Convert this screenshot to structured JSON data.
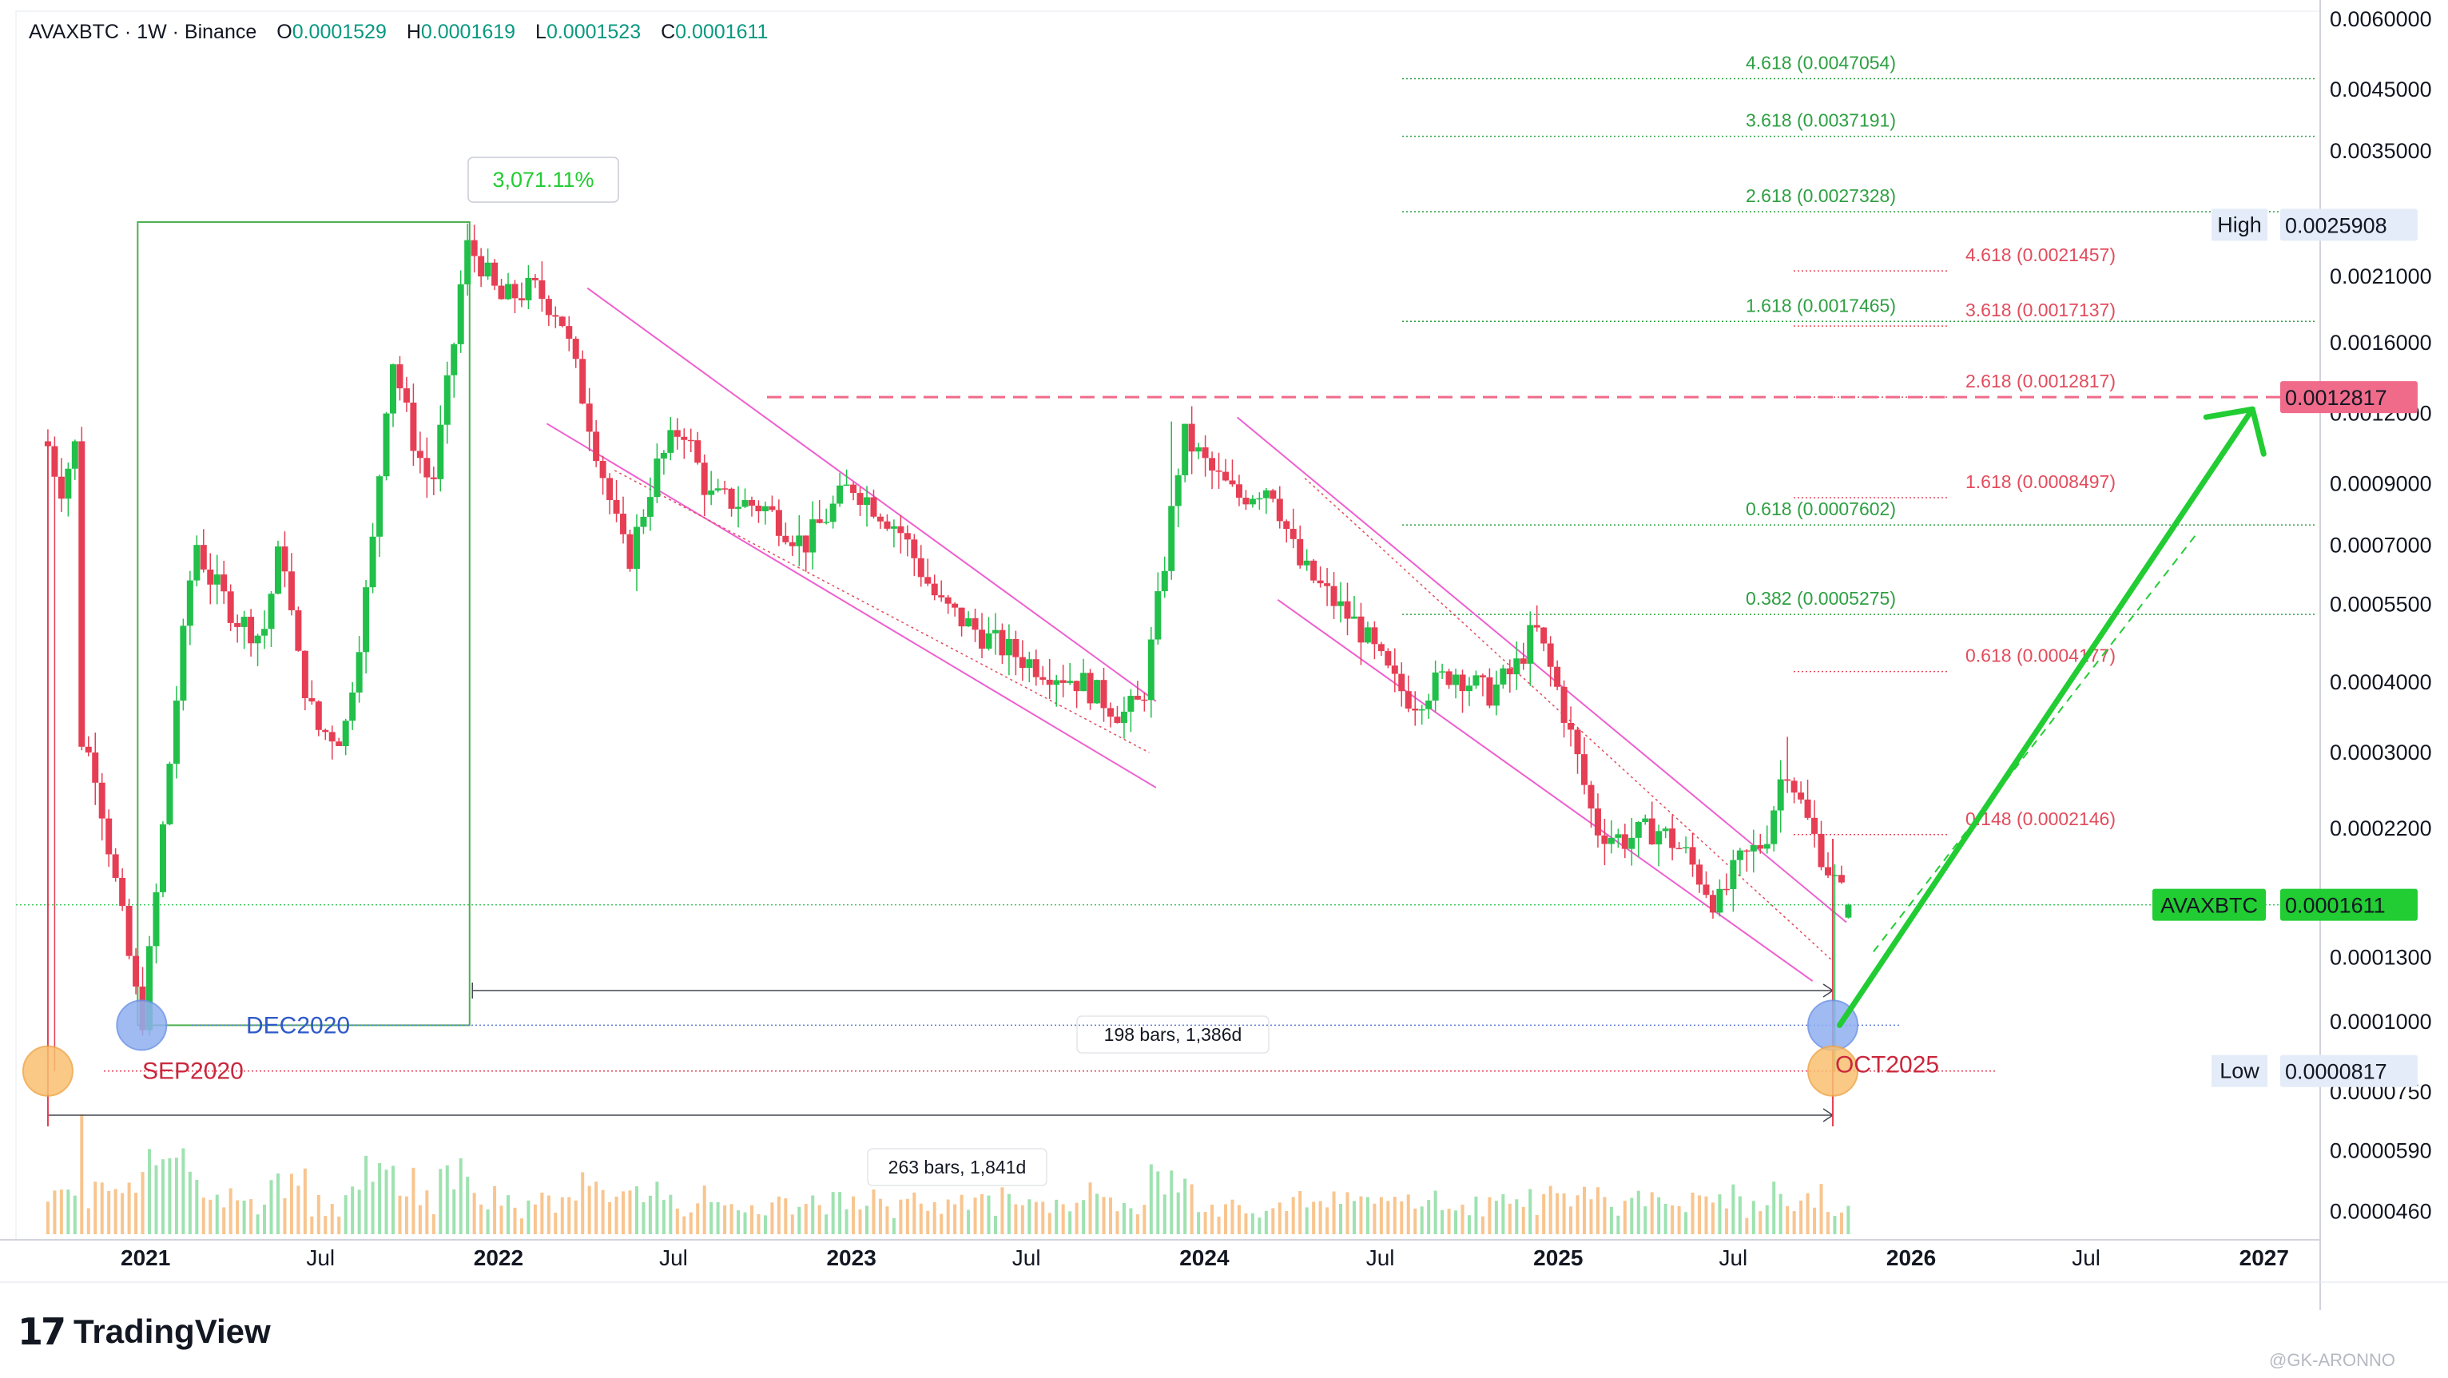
{
  "header": {
    "symbol": "AVAXBTC · 1W · Binance",
    "o_label": "O",
    "o_value": "0.0001529",
    "h_label": "H",
    "h_value": "0.0001619",
    "l_label": "L",
    "l_value": "0.0001523",
    "c_label": "C",
    "c_value": "0.0001611"
  },
  "brand": {
    "logo_glyph": "17",
    "name": "TradingView"
  },
  "watermark": "@GK-ARONNO",
  "colors": {
    "up": "#21c04a",
    "down": "#e63e54",
    "fib_green": "#2ea043",
    "fib_red": "#e24c5d",
    "channel": "#ee5fd0",
    "accent_green": "#22cc33",
    "price_tag": "#22cc33",
    "level_tag": "#f06a8a",
    "range_box": "#4caf50"
  },
  "chart_data": {
    "type": "candlestick",
    "title": "AVAXBTC · 1W · Binance",
    "scale": "log",
    "ylim": [
      4.1e-05,
      0.0062
    ],
    "xlim": [
      "2020-08-20",
      "2027-02-28"
    ],
    "grid": false,
    "y_ticks": [
      "0.0060000",
      "0.0045000",
      "0.0035000",
      "0.0021000",
      "0.0016000",
      "0.0012000",
      "0.0009000",
      "0.0007000",
      "0.0005500",
      "0.0004000",
      "0.0003000",
      "0.0002200",
      "0.0001300",
      "0.0001000",
      "0.0000750",
      "0.0000590",
      "0.0000460"
    ],
    "x_ticks": [
      {
        "label": "2021",
        "date": "2021-01-01",
        "bold": true
      },
      {
        "label": "Jul",
        "date": "2021-07-01",
        "bold": false
      },
      {
        "label": "2022",
        "date": "2022-01-01",
        "bold": true
      },
      {
        "label": "Jul",
        "date": "2022-07-01",
        "bold": false
      },
      {
        "label": "2023",
        "date": "2023-01-01",
        "bold": true
      },
      {
        "label": "Jul",
        "date": "2023-07-01",
        "bold": false
      },
      {
        "label": "2024",
        "date": "2024-01-01",
        "bold": true
      },
      {
        "label": "Jul",
        "date": "2024-07-01",
        "bold": false
      },
      {
        "label": "2025",
        "date": "2025-01-01",
        "bold": true
      },
      {
        "label": "Jul",
        "date": "2025-07-01",
        "bold": false
      },
      {
        "label": "2026",
        "date": "2026-01-01",
        "bold": true
      },
      {
        "label": "Jul",
        "date": "2026-07-01",
        "bold": false
      },
      {
        "label": "2027",
        "date": "2027-01-01",
        "bold": true
      }
    ],
    "price_anchors": [
      [
        "2020-09-22",
        0.00105
      ],
      [
        "2020-10-05",
        0.00088
      ],
      [
        "2020-10-20",
        0.00105
      ],
      [
        "2020-10-26",
        0.00032
      ],
      [
        "2020-11-10",
        0.00028
      ],
      [
        "2020-11-30",
        0.00018
      ],
      [
        "2020-12-15",
        0.00013
      ],
      [
        "2020-12-28",
        9.8e-05
      ],
      [
        "2021-01-10",
        0.000155
      ],
      [
        "2021-01-31",
        0.00035
      ],
      [
        "2021-02-21",
        0.00072
      ],
      [
        "2021-03-07",
        0.00062
      ],
      [
        "2021-04-05",
        0.00052
      ],
      [
        "2021-05-02",
        0.00048
      ],
      [
        "2021-05-22",
        0.00072
      ],
      [
        "2021-06-06",
        0.00045
      ],
      [
        "2021-06-27",
        0.00033
      ],
      [
        "2021-07-25",
        0.00032
      ],
      [
        "2021-08-22",
        0.00065
      ],
      [
        "2021-09-12",
        0.00155
      ],
      [
        "2021-10-03",
        0.0011
      ],
      [
        "2021-10-24",
        0.00088
      ],
      [
        "2021-11-14",
        0.0015
      ],
      [
        "2021-11-28",
        0.00238
      ],
      [
        "2021-12-12",
        0.00225
      ],
      [
        "2022-01-02",
        0.0019
      ],
      [
        "2022-02-06",
        0.002
      ],
      [
        "2022-03-06",
        0.0018
      ],
      [
        "2022-04-03",
        0.0012
      ],
      [
        "2022-05-01",
        0.00078
      ],
      [
        "2022-05-15",
        0.00065
      ],
      [
        "2022-06-12",
        0.00095
      ],
      [
        "2022-07-10",
        0.00115
      ],
      [
        "2022-08-07",
        0.00085
      ],
      [
        "2022-10-02",
        0.00082
      ],
      [
        "2022-11-13",
        0.0007
      ],
      [
        "2023-01-01",
        0.0009
      ],
      [
        "2023-02-19",
        0.00075
      ],
      [
        "2023-04-02",
        0.00055
      ],
      [
        "2023-05-28",
        0.00047
      ],
      [
        "2023-07-09",
        0.00043
      ],
      [
        "2023-08-27",
        0.0004
      ],
      [
        "2023-10-08",
        0.00035
      ],
      [
        "2023-10-29",
        0.00037
      ],
      [
        "2023-11-19",
        0.00062
      ],
      [
        "2023-12-10",
        0.0011
      ],
      [
        "2024-01-07",
        0.00095
      ],
      [
        "2024-02-04",
        0.00085
      ],
      [
        "2024-03-10",
        0.0009
      ],
      [
        "2024-04-07",
        0.00065
      ],
      [
        "2024-05-12",
        0.00056
      ],
      [
        "2024-06-09",
        0.0005
      ],
      [
        "2024-07-14",
        0.0004
      ],
      [
        "2024-08-04",
        0.00037
      ],
      [
        "2024-09-15",
        0.00042
      ],
      [
        "2024-10-20",
        0.00038
      ],
      [
        "2024-11-17",
        0.00042
      ],
      [
        "2024-12-08",
        0.0005
      ],
      [
        "2024-12-29",
        0.0004
      ],
      [
        "2025-01-19",
        0.0003
      ],
      [
        "2025-02-09",
        0.00022
      ],
      [
        "2025-03-09",
        0.00021
      ],
      [
        "2025-04-13",
        0.00022
      ],
      [
        "2025-05-11",
        0.0002
      ],
      [
        "2025-06-15",
        0.00016
      ],
      [
        "2025-07-06",
        0.00019
      ],
      [
        "2025-08-03",
        0.00021
      ],
      [
        "2025-08-24",
        0.00029
      ],
      [
        "2025-09-14",
        0.00023
      ],
      [
        "2025-10-05",
        0.00019
      ],
      [
        "2025-10-19",
        0.00017
      ],
      [
        "2025-11-02",
        0.000161
      ]
    ],
    "last_price": {
      "label": "AVAXBTC",
      "value": "0.0001611",
      "price": 0.0001611
    },
    "high": {
      "label": "High",
      "value": "0.0025908",
      "price": 0.0025908
    },
    "low": {
      "label": "Low",
      "value": "0.0000817",
      "price": 8.17e-05
    },
    "target": {
      "value": "0.0012817",
      "price": 0.0012817
    },
    "fib_green": [
      {
        "label": "4.618 (0.0047054)",
        "price": 0.0047054
      },
      {
        "label": "3.618 (0.0037191)",
        "price": 0.0037191
      },
      {
        "label": "2.618 (0.0027328)",
        "price": 0.0027328
      },
      {
        "label": "1.618 (0.0017465)",
        "price": 0.0017465
      },
      {
        "label": "0.618 (0.0007602)",
        "price": 0.0007602
      },
      {
        "label": "0.382 (0.0005275)",
        "price": 0.0005275
      }
    ],
    "fib_red": [
      {
        "label": "4.618 (0.0021457)",
        "price": 0.0021457
      },
      {
        "label": "3.618 (0.0017137)",
        "price": 0.0017137
      },
      {
        "label": "2.618 (0.0012817)",
        "price": 0.0012817
      },
      {
        "label": "1.618 (0.0008497)",
        "price": 0.0008497
      },
      {
        "label": "0.618 (0.0004177)",
        "price": 0.0004177
      },
      {
        "label": "0.148 (0.0002146)",
        "price": 0.0002146
      }
    ],
    "annotations": [
      {
        "text": "3,071.11%",
        "kind": "percent-change"
      },
      {
        "text": "DEC2020",
        "kind": "marker",
        "date": "2020-12-28",
        "price": 9.85e-05
      },
      {
        "text": "SEP2020",
        "kind": "marker",
        "date": "2020-09-22",
        "price": 8.17e-05
      },
      {
        "text": "OCT2025",
        "kind": "marker",
        "date": "2025-10-12",
        "price": 8.17e-05
      },
      {
        "text": "198 bars, 1,386d",
        "kind": "date-range"
      },
      {
        "text": "263 bars, 1,841d",
        "kind": "date-range"
      }
    ]
  }
}
